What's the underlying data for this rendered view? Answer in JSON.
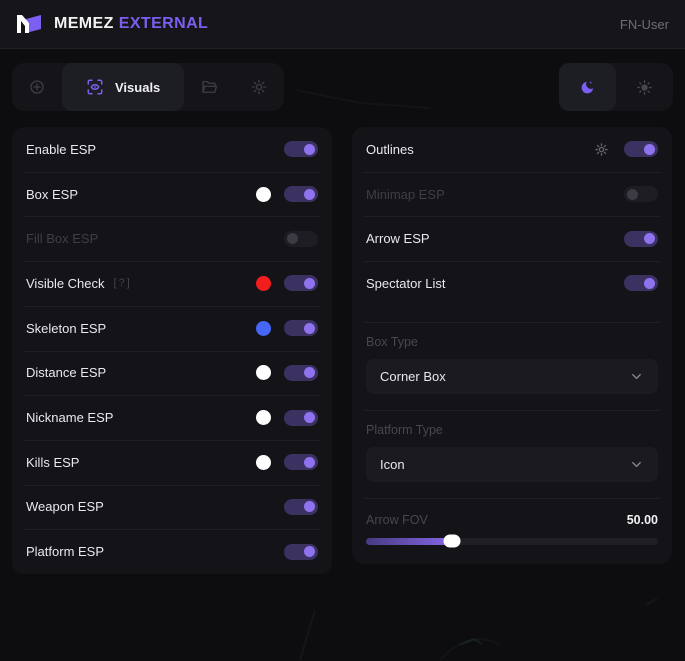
{
  "colors": {
    "accent": "#7c5ff0",
    "toggle_on_track": "#3c3261",
    "toggle_on_knob": "#8f72ee",
    "toggle_off_track": "#26262c",
    "swatch_white": "#ffffff",
    "swatch_red": "#f21d1d",
    "swatch_blue": "#4666f5"
  },
  "header": {
    "brand": "MEMEZ",
    "brand_accent": "EXTERNAL",
    "user_label": "FN-User"
  },
  "toolbar": {
    "tabs": [
      {
        "icon": "crosshair-icon",
        "label": "",
        "active": false
      },
      {
        "icon": "scan-eye-icon",
        "label": "Visuals",
        "active": true
      },
      {
        "icon": "folder-icon",
        "label": "",
        "active": false
      },
      {
        "icon": "gear-icon",
        "label": "",
        "active": false
      }
    ],
    "theme": {
      "active": "dark",
      "options": [
        "dark",
        "light"
      ]
    }
  },
  "left_panel": {
    "rows": [
      {
        "label": "Enable ESP",
        "toggle": true
      },
      {
        "label": "Box ESP",
        "toggle": true,
        "swatch": "#ffffff"
      },
      {
        "label": "Fill Box ESP",
        "toggle": false,
        "dim": true
      },
      {
        "label": "Visible Check",
        "help": "[?]",
        "toggle": true,
        "swatch": "#f21d1d"
      },
      {
        "label": "Skeleton ESP",
        "toggle": true,
        "swatch": "#4666f5"
      },
      {
        "label": "Distance ESP",
        "toggle": true,
        "swatch": "#ffffff"
      },
      {
        "label": "Nickname ESP",
        "toggle": true,
        "swatch": "#ffffff"
      },
      {
        "label": "Kills ESP",
        "toggle": true,
        "swatch": "#ffffff"
      },
      {
        "label": "Weapon ESP",
        "toggle": true
      },
      {
        "label": "Platform ESP",
        "toggle": true
      }
    ]
  },
  "right_panel": {
    "rows": [
      {
        "label": "Outlines",
        "toggle": true,
        "gear": true
      },
      {
        "label": "Minimap ESP",
        "toggle": false,
        "dim": true
      },
      {
        "label": "Arrow ESP",
        "toggle": true
      },
      {
        "label": "Spectator List",
        "toggle": true
      }
    ],
    "selects": [
      {
        "label": "Box Type",
        "value": "Corner Box"
      },
      {
        "label": "Platform Type",
        "value": "Icon"
      }
    ],
    "slider": {
      "label": "Arrow FOV",
      "value": "50.00",
      "percent": 29.5
    }
  }
}
